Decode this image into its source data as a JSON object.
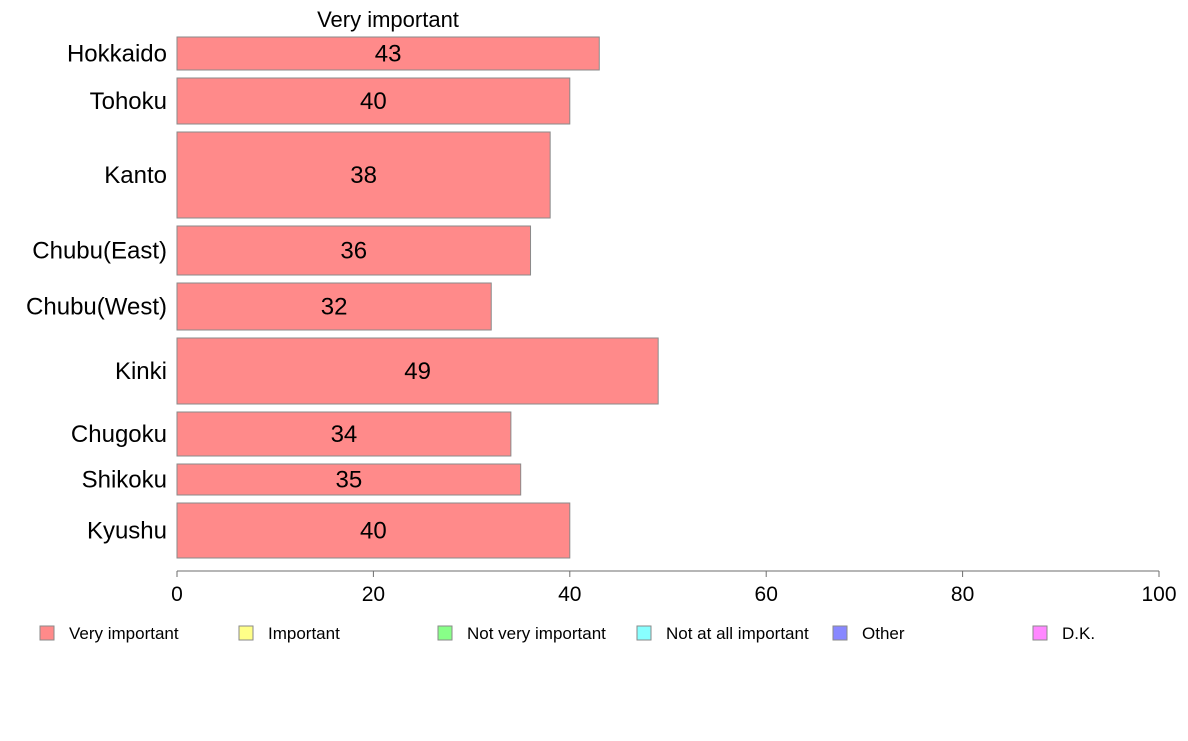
{
  "chart_data": {
    "type": "bar",
    "orientation": "horizontal",
    "stacked": true,
    "title": "Very important",
    "categories": [
      "Hokkaido",
      "Tohoku",
      "Kanto",
      "Chubu(East)",
      "Chubu(West)",
      "Kinki",
      "Chugoku",
      "Shikoku",
      "Kyushu"
    ],
    "series": [
      {
        "name": "Very important",
        "color": "#FF8A8A",
        "values": [
          43,
          40,
          38,
          36,
          32,
          49,
          34,
          35,
          40
        ]
      }
    ],
    "xlim": [
      0,
      100
    ],
    "xticks": [
      0,
      20,
      40,
      60,
      80,
      100
    ],
    "grid": false,
    "legend": {
      "placement": "bottom",
      "entries": [
        {
          "label": "Very important",
          "color": "#FF8A8A"
        },
        {
          "label": "Important",
          "color": "#FFFF88"
        },
        {
          "label": "Not very important",
          "color": "#88FF88"
        },
        {
          "label": "Not at all important",
          "color": "#88FFFF"
        },
        {
          "label": "Other",
          "color": "#8888FF"
        },
        {
          "label": "D.K.",
          "color": "#FF88FF"
        }
      ]
    }
  }
}
